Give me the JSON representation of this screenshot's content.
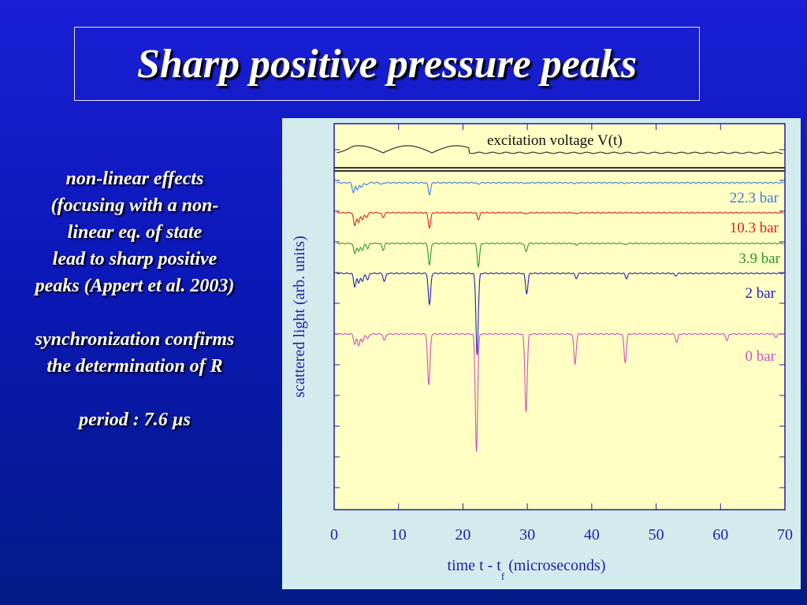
{
  "slide": {
    "title": "Sharp positive pressure peaks",
    "text_lines_1": [
      "non-linear effects",
      "(focusing with a non-",
      "linear eq. of state",
      "lead to sharp positive",
      "peaks (Appert et al. 2003)"
    ],
    "text_lines_2": [
      "synchronization confirms",
      "the determination of R"
    ],
    "period_text": "period : 7.6 µs"
  },
  "colors": {
    "figure_bg": "#d2ecee",
    "plot_bg": "#ffffc4",
    "axis": "#1f1fa8",
    "excitation": "#333333"
  },
  "chart_data": {
    "type": "line",
    "xlabel_main": "time t - t",
    "xlabel_sub": "f",
    "xlabel_unit": "(microseconds)",
    "ylabel": "scattered light (arb. units)",
    "xlim": [
      0,
      70
    ],
    "xticks": [
      "0",
      "10",
      "20",
      "30",
      "40",
      "50",
      "60",
      "70"
    ],
    "grid": false,
    "legend": "labels at right end of each trace",
    "period_us": 7.6,
    "excitation": {
      "label": "excitation voltage V(t)",
      "color": "#333333",
      "oscillation_end_us": 21,
      "cycles": 3
    },
    "series": [
      {
        "name": "22.3 bar",
        "color": "#3a7be0",
        "peaks_us": [
          3,
          3.6,
          4.2,
          5,
          7.4,
          14.8,
          22.4,
          29.8,
          37.4,
          45.2
        ],
        "peak_depths": [
          0.6,
          0.4,
          0.3,
          0.15,
          0.1,
          0.7,
          0.08,
          0.05,
          0.05,
          0.04
        ]
      },
      {
        "name": "10.3 bar",
        "color": "#e02020",
        "peaks_us": [
          3.2,
          3.8,
          4.4,
          5,
          7.6,
          14.8,
          22.4,
          29.8,
          37.6
        ],
        "peak_depths": [
          0.8,
          0.6,
          0.4,
          0.3,
          0.3,
          0.9,
          0.4,
          0.1,
          0.08
        ]
      },
      {
        "name": "3.9 bar",
        "color": "#2a9a2a",
        "peaks_us": [
          3.2,
          3.8,
          4.4,
          5.2,
          7.6,
          14.8,
          22.4,
          29.8,
          37.6,
          45.2
        ],
        "peak_depths": [
          0.6,
          0.5,
          0.4,
          0.3,
          0.4,
          1.3,
          1.4,
          0.5,
          0.1,
          0.08
        ]
      },
      {
        "name": "2 bar",
        "color": "#2020c0",
        "peaks_us": [
          3.2,
          3.8,
          4.4,
          5.2,
          7.8,
          14.8,
          22.2,
          29.9,
          37.6,
          45.4,
          53.0
        ],
        "peak_depths": [
          0.8,
          0.6,
          0.5,
          0.4,
          0.5,
          1.9,
          4.9,
          1.2,
          0.3,
          0.3,
          0.15
        ]
      },
      {
        "name": "0 bar",
        "color": "#d050c0",
        "peaks_us": [
          3.2,
          3.8,
          4.4,
          5.2,
          7.8,
          14.7,
          22.1,
          29.8,
          37.4,
          45.2,
          53.2,
          61.0,
          68.6
        ],
        "peak_depths": [
          0.6,
          0.7,
          0.5,
          0.3,
          0.4,
          3.1,
          7.1,
          4.7,
          1.8,
          1.7,
          0.5,
          0.4,
          0.2
        ]
      }
    ]
  }
}
